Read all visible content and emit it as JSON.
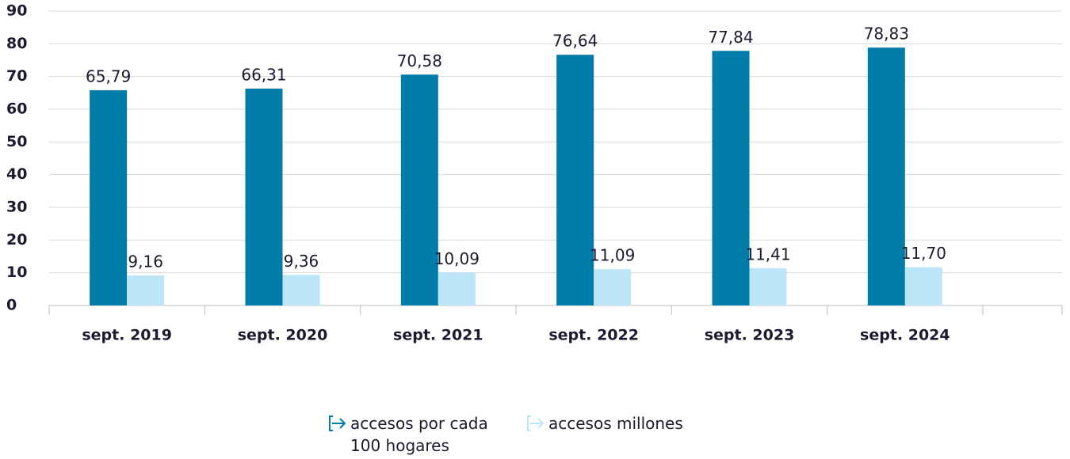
{
  "chart_data": {
    "type": "bar",
    "categories": [
      "sept. 2019",
      "sept. 2020",
      "sept. 2021",
      "sept. 2022",
      "sept. 2023",
      "sept. 2024"
    ],
    "series": [
      {
        "name": "accesos por cada 100 hogares",
        "color": "#007ca8",
        "values": [
          65.79,
          66.31,
          70.58,
          76.64,
          77.84,
          78.83
        ],
        "value_labels": [
          "65,79",
          "66,31",
          "70,58",
          "76,64",
          "77,84",
          "78,83"
        ]
      },
      {
        "name": "accesos millones",
        "color": "#bde5f8",
        "values": [
          9.16,
          9.36,
          10.09,
          11.09,
          11.41,
          11.7
        ],
        "value_labels": [
          "9,16",
          "9,36",
          "10,09",
          "11,09",
          "11,41",
          "11,70"
        ]
      }
    ],
    "ylim": [
      0,
      90
    ],
    "yticks": [
      0,
      10,
      20,
      30,
      40,
      50,
      60,
      70,
      80,
      90
    ],
    "grid": true,
    "legend": "bottom"
  }
}
